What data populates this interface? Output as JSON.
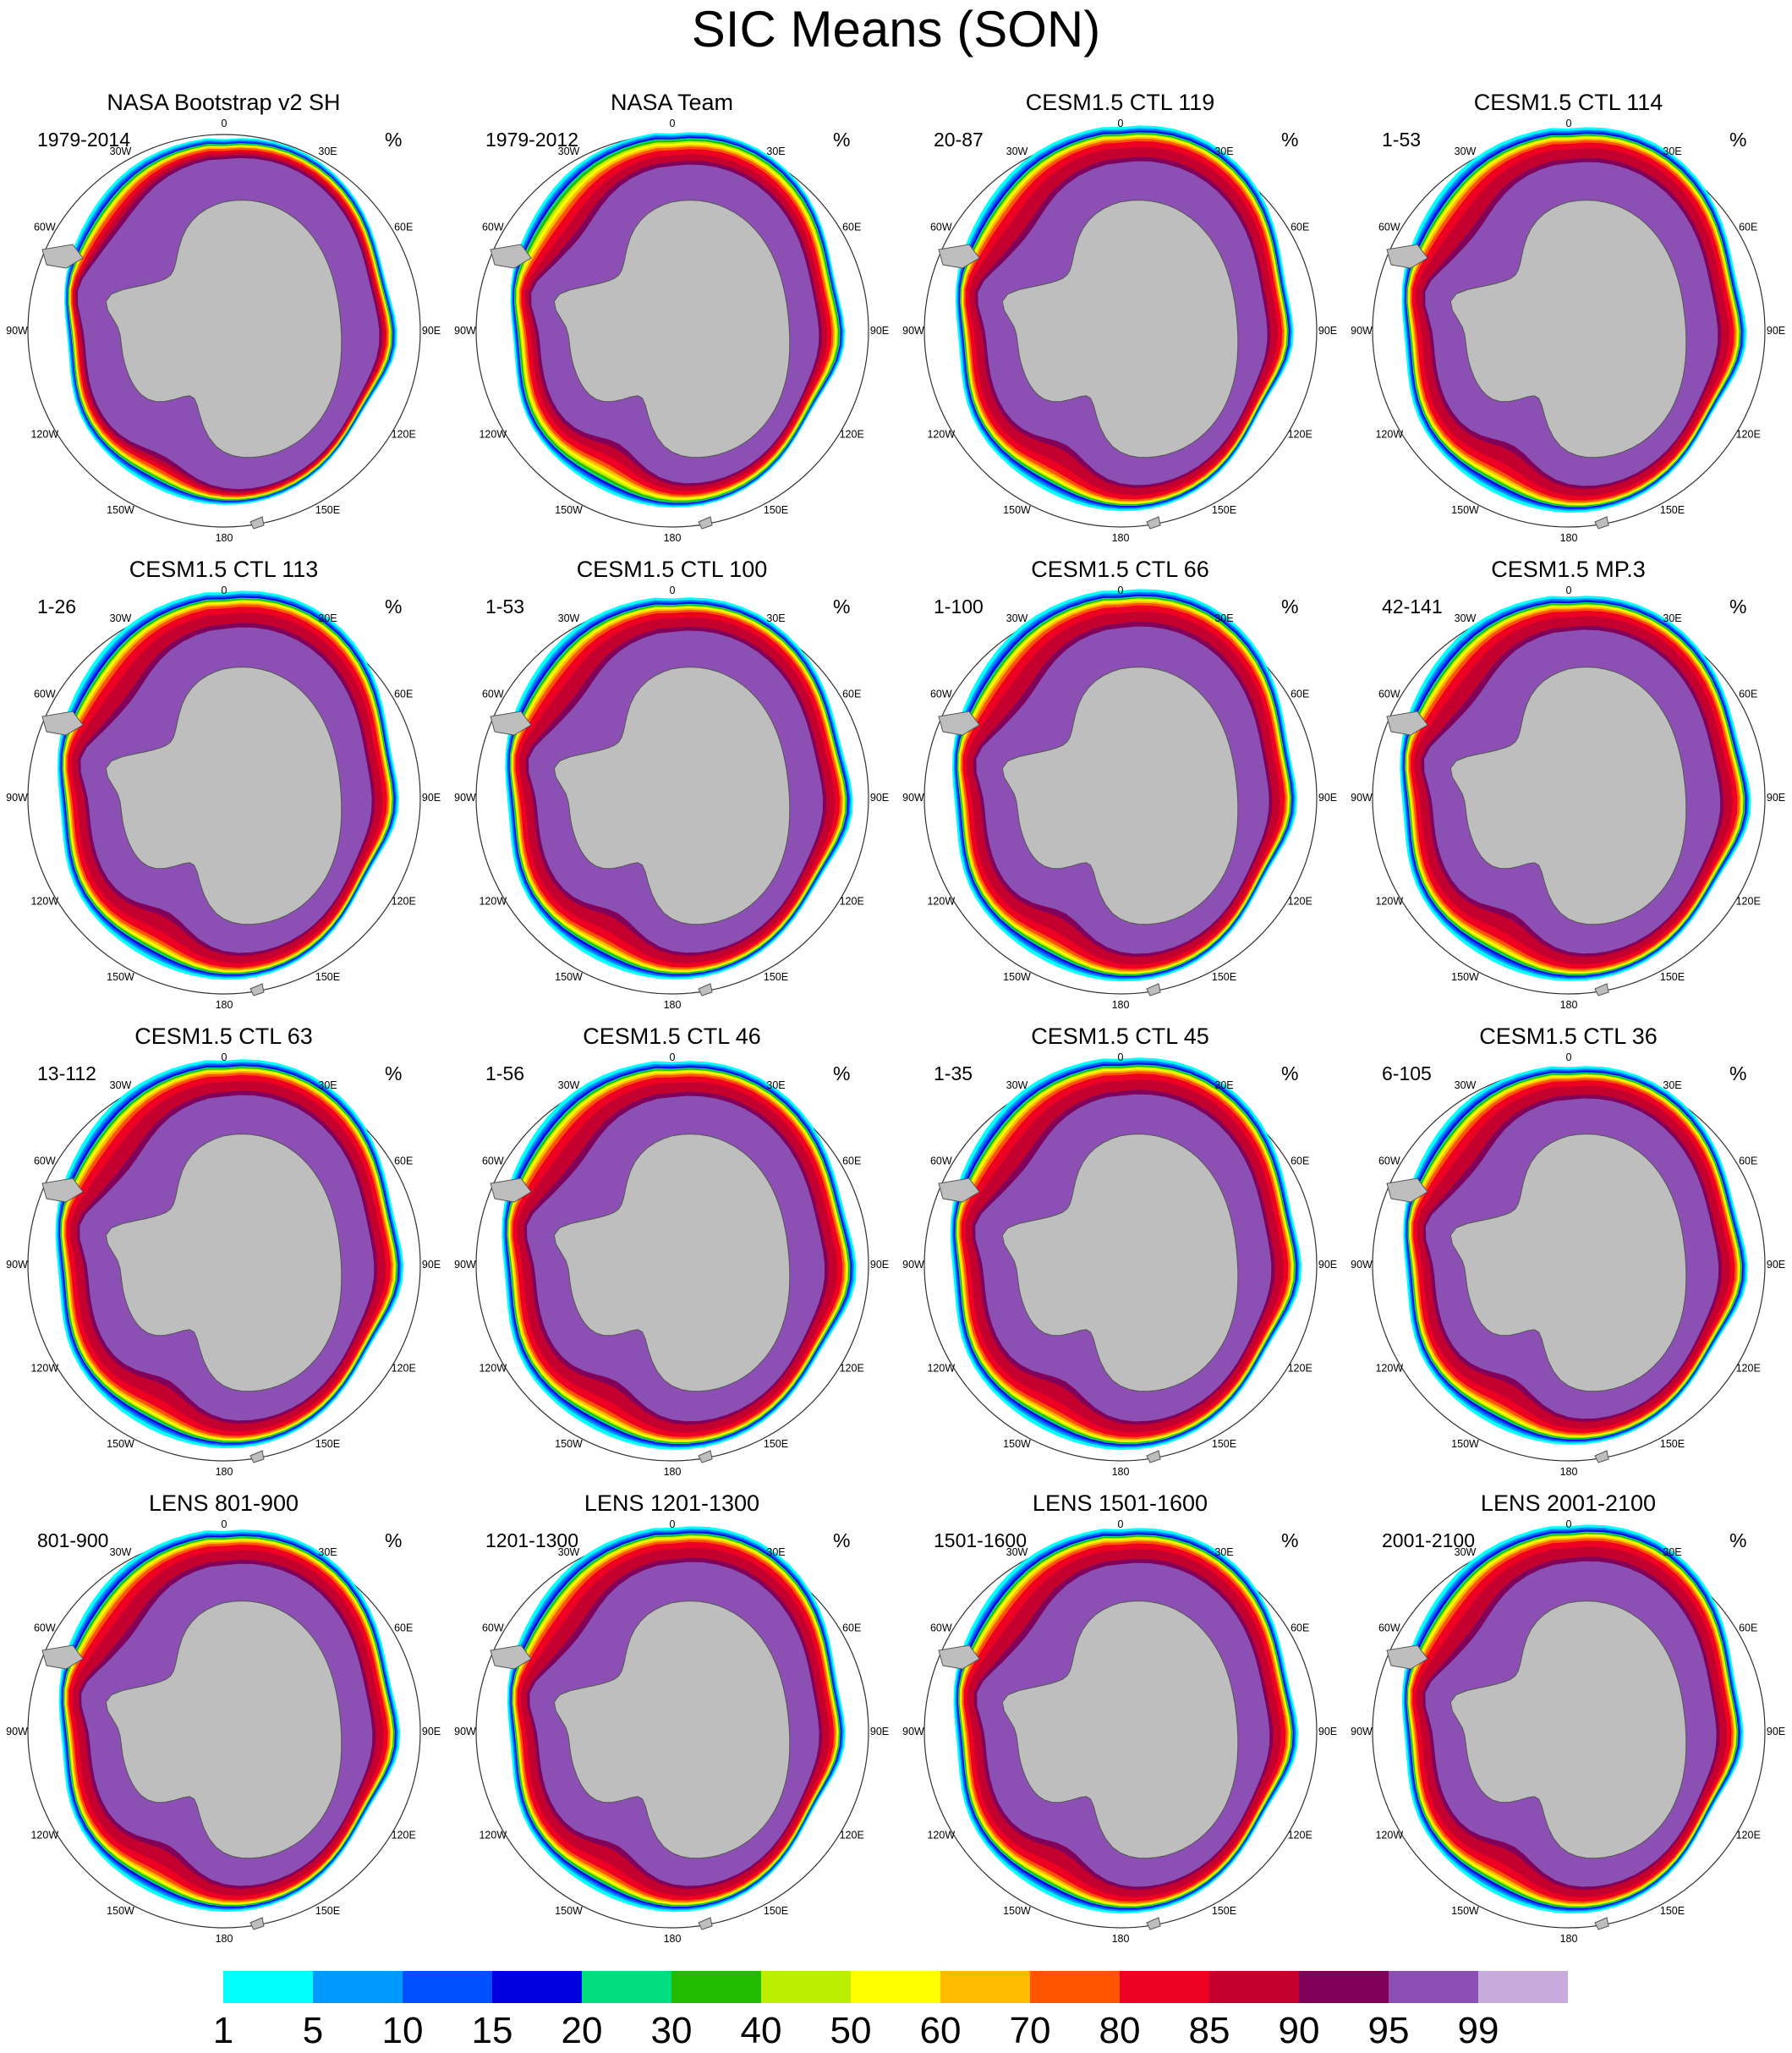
{
  "figure": {
    "title": "SIC Means (SON)",
    "unit": "%",
    "longitude_labels": [
      "0",
      "30E",
      "60E",
      "90E",
      "120E",
      "150E",
      "180",
      "150W",
      "120W",
      "90W",
      "60W",
      "30W"
    ],
    "panels": [
      {
        "title": "NASA Bootstrap v2 SH",
        "years": "1979-2014",
        "style": "bootstrap"
      },
      {
        "title": "NASA Team",
        "years": "1979-2012",
        "style": "team"
      },
      {
        "title": "CESM1.5 CTL 119",
        "years": "20-87",
        "style": "model"
      },
      {
        "title": "CESM1.5 CTL 114",
        "years": "1-53",
        "style": "model"
      },
      {
        "title": "CESM1.5 CTL 113",
        "years": "1-26",
        "style": "model"
      },
      {
        "title": "CESM1.5 CTL 100",
        "years": "1-53",
        "style": "model"
      },
      {
        "title": "CESM1.5 CTL 66",
        "years": "1-100",
        "style": "model"
      },
      {
        "title": "CESM1.5 MP.3",
        "years": "42-141",
        "style": "model"
      },
      {
        "title": "CESM1.5 CTL 63",
        "years": "13-112",
        "style": "model"
      },
      {
        "title": "CESM1.5 CTL 46",
        "years": "1-56",
        "style": "model"
      },
      {
        "title": "CESM1.5 CTL 45",
        "years": "1-35",
        "style": "model"
      },
      {
        "title": "CESM1.5 CTL 36",
        "years": "6-105",
        "style": "model"
      },
      {
        "title": "LENS 801-900",
        "years": "801-900",
        "style": "model"
      },
      {
        "title": "LENS 1201-1300",
        "years": "1201-1300",
        "style": "model"
      },
      {
        "title": "LENS 1501-1600",
        "years": "1501-1600",
        "style": "model"
      },
      {
        "title": "LENS 2001-2100",
        "years": "2001-2100",
        "style": "model"
      }
    ],
    "colorbar": {
      "labels": [
        "1",
        "5",
        "10",
        "15",
        "20",
        "30",
        "40",
        "50",
        "60",
        "70",
        "80",
        "85",
        "90",
        "95",
        "99"
      ],
      "colors": [
        "#00ffff",
        "#0099ff",
        "#0050ff",
        "#0000e0",
        "#00dd80",
        "#22bb00",
        "#bbee00",
        "#ffff00",
        "#ffbb00",
        "#ff5500",
        "#ee0022",
        "#c4002e",
        "#80005a",
        "#8c50b4",
        "#c8aadd"
      ]
    },
    "land_color": "#bebebe"
  }
}
